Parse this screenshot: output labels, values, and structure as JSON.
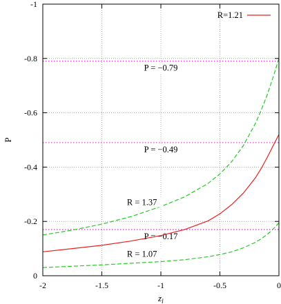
{
  "chart_data": {
    "type": "line",
    "title": "",
    "xlabel": "z",
    "xlabel_sub": "l",
    "ylabel": "P",
    "xlim": [
      -2,
      0
    ],
    "ylim": [
      0,
      -1
    ],
    "y_inverted": true,
    "grid": true,
    "x_ticks": [
      -2,
      -1.5,
      -1,
      -0.5,
      0
    ],
    "x_tick_labels": [
      "-2",
      "-1.5",
      "-1",
      "-0.5",
      "0"
    ],
    "y_ticks": [
      0,
      -0.2,
      -0.4,
      -0.6,
      -0.8,
      -1
    ],
    "y_tick_labels": [
      "0",
      "-0.2",
      "-0.4",
      "-0.6",
      "-0.8",
      "-1"
    ],
    "legend": {
      "placement": "top-right",
      "entries": [
        {
          "label": "R=1.21",
          "color": "#e8201c",
          "style": "solid"
        }
      ]
    },
    "series": [
      {
        "name": "R=1.21",
        "color": "#e8201c",
        "style": "solid",
        "x": [
          -2,
          -1.75,
          -1.5,
          -1.25,
          -1,
          -0.8,
          -0.6,
          -0.5,
          -0.4,
          -0.3,
          -0.2,
          -0.15,
          -0.1,
          -0.05,
          0
        ],
        "y": [
          -0.088,
          -0.1,
          -0.112,
          -0.128,
          -0.148,
          -0.17,
          -0.202,
          -0.228,
          -0.262,
          -0.305,
          -0.36,
          -0.395,
          -0.435,
          -0.478,
          -0.52
        ]
      },
      {
        "name": "R = 1.37",
        "color": "#22cc22",
        "style": "dashed",
        "x": [
          -2,
          -1.75,
          -1.5,
          -1.25,
          -1,
          -0.8,
          -0.6,
          -0.5,
          -0.4,
          -0.3,
          -0.2,
          -0.15,
          -0.1,
          -0.05,
          0
        ],
        "y": [
          -0.15,
          -0.168,
          -0.19,
          -0.218,
          -0.255,
          -0.29,
          -0.34,
          -0.375,
          -0.42,
          -0.48,
          -0.56,
          -0.61,
          -0.665,
          -0.73,
          -0.8
        ]
      },
      {
        "name": "R = 1.07",
        "color": "#22cc22",
        "style": "dashed",
        "x": [
          -2,
          -1.75,
          -1.5,
          -1.25,
          -1,
          -0.8,
          -0.6,
          -0.5,
          -0.4,
          -0.3,
          -0.2,
          -0.15,
          -0.1,
          -0.05,
          0
        ],
        "y": [
          -0.03,
          -0.035,
          -0.04,
          -0.046,
          -0.052,
          -0.059,
          -0.07,
          -0.078,
          -0.088,
          -0.103,
          -0.123,
          -0.136,
          -0.152,
          -0.171,
          -0.195
        ]
      }
    ],
    "reference_lines": [
      {
        "y": -0.79,
        "label": "P = −0.79",
        "color": "#cc33cc",
        "style": "dotted"
      },
      {
        "y": -0.49,
        "label": "P = −0.49",
        "color": "#cc33cc",
        "style": "dotted"
      },
      {
        "y": -0.17,
        "label": "P = −0.17",
        "color": "#cc33cc",
        "style": "dotted"
      }
    ],
    "annotations": [
      {
        "text": "R = 1.37",
        "x": -1.16,
        "y": -0.26
      },
      {
        "text": "R = 1.07",
        "x": -1.16,
        "y": -0.07
      }
    ]
  }
}
